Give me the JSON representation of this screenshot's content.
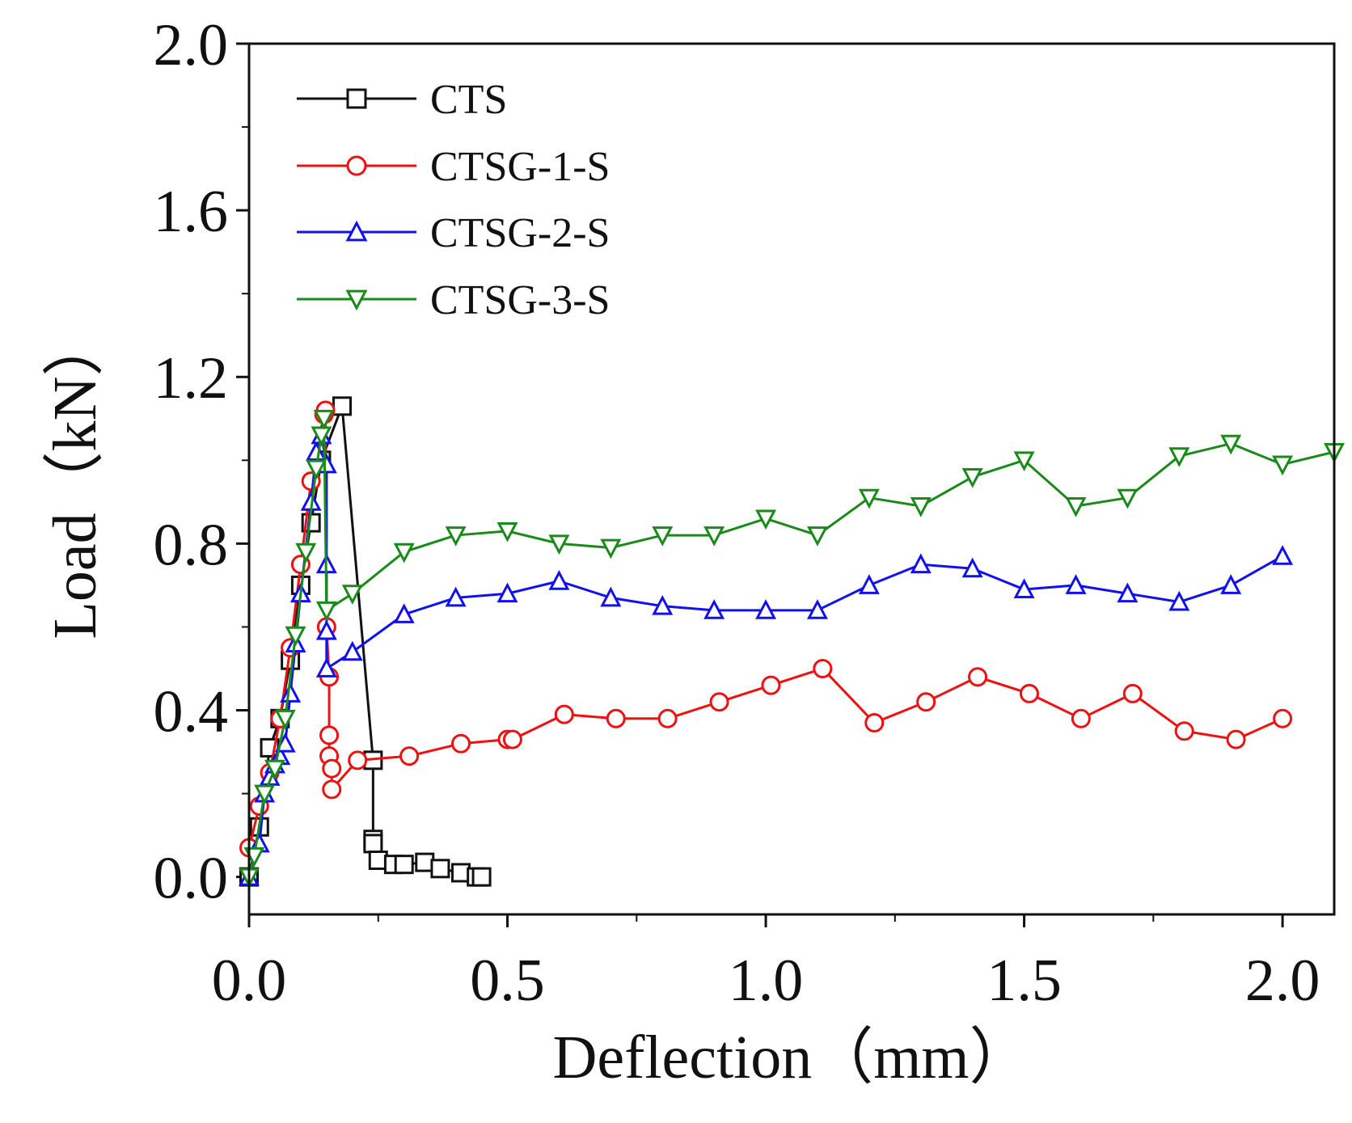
{
  "chart_data": {
    "type": "line",
    "xlabel": "Deflection（mm）",
    "ylabel": "Load（kN）",
    "xlim": [
      0.0,
      2.1
    ],
    "ylim": [
      -0.09,
      2.0
    ],
    "x_ticks": [
      0.0,
      0.5,
      1.0,
      1.5,
      2.0
    ],
    "x_tick_labels": [
      "0.0",
      "0.5",
      "1.0",
      "1.5",
      "2.0"
    ],
    "y_ticks": [
      0.0,
      0.4,
      0.8,
      1.2,
      1.6,
      2.0
    ],
    "y_tick_labels": [
      "0.0",
      "0.4",
      "0.8",
      "1.2",
      "1.6",
      "2.0"
    ],
    "legend_position": "top-left",
    "series": [
      {
        "name": "CTS",
        "color": "#111111",
        "marker": "square",
        "points": [
          [
            0.0,
            0.0
          ],
          [
            0.02,
            0.12
          ],
          [
            0.04,
            0.31
          ],
          [
            0.06,
            0.38
          ],
          [
            0.08,
            0.52
          ],
          [
            0.1,
            0.7
          ],
          [
            0.12,
            0.85
          ],
          [
            0.14,
            1.0
          ],
          [
            0.18,
            1.13
          ],
          [
            0.24,
            0.28
          ],
          [
            0.24,
            0.09
          ],
          [
            0.24,
            0.08
          ],
          [
            0.25,
            0.04
          ],
          [
            0.28,
            0.03
          ],
          [
            0.3,
            0.03
          ],
          [
            0.34,
            0.035
          ],
          [
            0.37,
            0.02
          ],
          [
            0.41,
            0.01
          ],
          [
            0.44,
            0.0
          ],
          [
            0.45,
            0.0
          ]
        ]
      },
      {
        "name": "CTSG-1-S",
        "color": "#ee1111",
        "marker": "circle",
        "points": [
          [
            0.0,
            0.07
          ],
          [
            0.02,
            0.17
          ],
          [
            0.04,
            0.25
          ],
          [
            0.06,
            0.38
          ],
          [
            0.08,
            0.55
          ],
          [
            0.1,
            0.75
          ],
          [
            0.12,
            0.95
          ],
          [
            0.145,
            1.11
          ],
          [
            0.148,
            1.12
          ],
          [
            0.15,
            0.6
          ],
          [
            0.155,
            0.48
          ],
          [
            0.155,
            0.34
          ],
          [
            0.155,
            0.29
          ],
          [
            0.16,
            0.26
          ],
          [
            0.16,
            0.21
          ],
          [
            0.21,
            0.28
          ],
          [
            0.31,
            0.29
          ],
          [
            0.41,
            0.32
          ],
          [
            0.5,
            0.33
          ],
          [
            0.51,
            0.33
          ],
          [
            0.61,
            0.39
          ],
          [
            0.71,
            0.38
          ],
          [
            0.81,
            0.38
          ],
          [
            0.91,
            0.42
          ],
          [
            1.01,
            0.46
          ],
          [
            1.11,
            0.5
          ],
          [
            1.21,
            0.37
          ],
          [
            1.31,
            0.42
          ],
          [
            1.41,
            0.48
          ],
          [
            1.51,
            0.44
          ],
          [
            1.61,
            0.38
          ],
          [
            1.71,
            0.44
          ],
          [
            1.81,
            0.35
          ],
          [
            1.91,
            0.33
          ],
          [
            2.0,
            0.38
          ]
        ]
      },
      {
        "name": "CTSG-2-S",
        "color": "#1111ee",
        "marker": "triangle-up",
        "points": [
          [
            0.0,
            0.0
          ],
          [
            0.02,
            0.08
          ],
          [
            0.03,
            0.2
          ],
          [
            0.04,
            0.24
          ],
          [
            0.05,
            0.27
          ],
          [
            0.06,
            0.29
          ],
          [
            0.07,
            0.32
          ],
          [
            0.08,
            0.44
          ],
          [
            0.09,
            0.56
          ],
          [
            0.1,
            0.68
          ],
          [
            0.12,
            0.9
          ],
          [
            0.13,
            1.02
          ],
          [
            0.14,
            1.06
          ],
          [
            0.15,
            0.99
          ],
          [
            0.15,
            0.75
          ],
          [
            0.15,
            0.59
          ],
          [
            0.15,
            0.5
          ],
          [
            0.2,
            0.54
          ],
          [
            0.3,
            0.63
          ],
          [
            0.4,
            0.67
          ],
          [
            0.5,
            0.68
          ],
          [
            0.6,
            0.71
          ],
          [
            0.7,
            0.67
          ],
          [
            0.8,
            0.65
          ],
          [
            0.9,
            0.64
          ],
          [
            1.0,
            0.64
          ],
          [
            1.1,
            0.64
          ],
          [
            1.2,
            0.7
          ],
          [
            1.3,
            0.75
          ],
          [
            1.4,
            0.74
          ],
          [
            1.5,
            0.69
          ],
          [
            1.6,
            0.7
          ],
          [
            1.7,
            0.68
          ],
          [
            1.8,
            0.66
          ],
          [
            1.9,
            0.7
          ],
          [
            2.0,
            0.77
          ]
        ]
      },
      {
        "name": "CTSG-3-S",
        "color": "#1a8a1a",
        "marker": "triangle-down",
        "points": [
          [
            0.0,
            0.0
          ],
          [
            0.01,
            0.05
          ],
          [
            0.03,
            0.2
          ],
          [
            0.05,
            0.26
          ],
          [
            0.07,
            0.38
          ],
          [
            0.09,
            0.58
          ],
          [
            0.11,
            0.78
          ],
          [
            0.13,
            0.98
          ],
          [
            0.14,
            1.06
          ],
          [
            0.145,
            1.1
          ],
          [
            0.15,
            0.64
          ],
          [
            0.2,
            0.68
          ],
          [
            0.3,
            0.78
          ],
          [
            0.4,
            0.82
          ],
          [
            0.5,
            0.83
          ],
          [
            0.6,
            0.8
          ],
          [
            0.7,
            0.79
          ],
          [
            0.8,
            0.82
          ],
          [
            0.9,
            0.82
          ],
          [
            1.0,
            0.86
          ],
          [
            1.1,
            0.82
          ],
          [
            1.2,
            0.91
          ],
          [
            1.3,
            0.89
          ],
          [
            1.4,
            0.96
          ],
          [
            1.5,
            1.0
          ],
          [
            1.6,
            0.89
          ],
          [
            1.7,
            0.91
          ],
          [
            1.8,
            1.01
          ],
          [
            1.9,
            1.04
          ],
          [
            2.0,
            0.99
          ],
          [
            2.1,
            1.02
          ]
        ]
      }
    ]
  }
}
